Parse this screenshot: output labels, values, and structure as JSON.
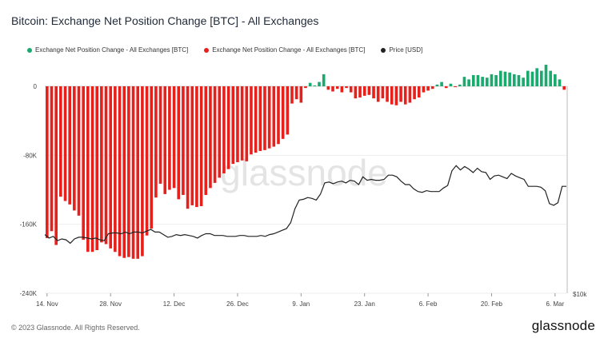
{
  "title": "Bitcoin: Exchange Net Position Change [BTC] - All Exchanges",
  "footer": {
    "copyright": "© 2023 Glassnode. All Rights Reserved.",
    "logo": "glassnode"
  },
  "watermark": "glassnode",
  "colors": {
    "positive": "#1aaa6e",
    "negative": "#e8201c",
    "price": "#222222"
  },
  "legend": [
    {
      "label": "Exchange Net Position Change - All Exchanges [BTC]",
      "color": "#1aaa6e"
    },
    {
      "label": "Exchange Net Position Change - All Exchanges [BTC]",
      "color": "#e8201c"
    },
    {
      "label": "Price [USD]",
      "color": "#222222"
    }
  ],
  "chart_data": {
    "type": "bar",
    "y_ticks": [
      "0",
      "-80K",
      "-160K",
      "-240K"
    ],
    "y_tick_values": [
      0,
      -80000,
      -160000,
      -240000
    ],
    "ylim": [
      -240000,
      0
    ],
    "right_axis_tick": "$10k",
    "x_ticks": [
      "14. Nov",
      "28. Nov",
      "12. Dec",
      "26. Dec",
      "9. Jan",
      "23. Jan",
      "6. Feb",
      "20. Feb",
      "6. Mar"
    ],
    "x_tick_day_index": [
      0,
      14,
      28,
      42,
      56,
      70,
      84,
      98,
      112
    ],
    "start_date": "2022-11-14",
    "net_position_change": [
      -176000,
      -168000,
      -184000,
      -128000,
      -133000,
      -137000,
      -144000,
      -150000,
      -178000,
      -192000,
      -192000,
      -190000,
      -181000,
      -183000,
      -188000,
      -192000,
      -197000,
      -199000,
      -198000,
      -200000,
      -200000,
      -197000,
      -173000,
      -165000,
      -129000,
      -113000,
      -125000,
      -120000,
      -118000,
      -131000,
      -126000,
      -142000,
      -138000,
      -140000,
      -139000,
      -126000,
      -118000,
      -112000,
      -106000,
      -101000,
      -96000,
      -90000,
      -88000,
      -86000,
      -87000,
      -79000,
      -77000,
      -75000,
      -74000,
      -72000,
      -70000,
      -67000,
      -61000,
      -56000,
      -20000,
      -15000,
      -19000,
      -2000,
      4000,
      1000,
      5000,
      14000,
      -4000,
      -6000,
      -3000,
      -7000,
      -2000,
      -7000,
      -14000,
      -13000,
      -11000,
      -10000,
      -14000,
      -18000,
      -14000,
      -18000,
      -21000,
      -22000,
      -18000,
      -21000,
      -19000,
      -15000,
      -13000,
      -7000,
      -5000,
      -3000,
      2000,
      5000,
      -2000,
      3000,
      -1000,
      2000,
      11000,
      8000,
      13000,
      13000,
      11000,
      10000,
      14000,
      13000,
      18000,
      17000,
      16000,
      14000,
      13000,
      10000,
      18000,
      17000,
      21000,
      18000,
      25000,
      18000,
      14000,
      8000,
      -4000
    ],
    "price_usd": [
      16800,
      16400,
      16600,
      16100,
      16300,
      16200,
      15800,
      16300,
      16500,
      16500,
      16400,
      16300,
      16400,
      16200,
      16100,
      16900,
      17000,
      17000,
      16900,
      17100,
      16900,
      17100,
      17100,
      17000,
      17200,
      17400,
      17100,
      17100,
      16800,
      16500,
      16600,
      16800,
      16700,
      16800,
      16700,
      16600,
      16400,
      16700,
      16900,
      16900,
      16700,
      16700,
      16700,
      16600,
      16600,
      16600,
      16700,
      16700,
      16600,
      16600,
      16600,
      16700,
      16600,
      16800,
      16900,
      17100,
      17300,
      17500,
      18200,
      19800,
      20800,
      20900,
      21100,
      21000,
      20800,
      21500,
      22800,
      22900,
      22700,
      22900,
      23000,
      22800,
      23100,
      23000,
      22600,
      23500,
      23100,
      23200,
      23100,
      23100,
      23200,
      23700,
      23700,
      23500,
      23000,
      22600,
      22600,
      22100,
      21800,
      21700,
      21900,
      21800,
      21800,
      21800,
      22200,
      22500,
      24200,
      24800,
      24300,
      24700,
      24400,
      24000,
      24500,
      24100,
      24000,
      23200,
      23600,
      23700,
      23500,
      23300,
      23900,
      23600,
      23400,
      23200,
      22400,
      22400,
      22400,
      22300,
      21900,
      20400,
      20200,
      20500,
      22400,
      22400
    ],
    "series": [
      {
        "name": "Exchange Net Position Change - All Exchanges [BTC]",
        "sign": "positive"
      },
      {
        "name": "Exchange Net Position Change - All Exchanges [BTC]",
        "sign": "negative"
      },
      {
        "name": "Price [USD]"
      }
    ]
  }
}
